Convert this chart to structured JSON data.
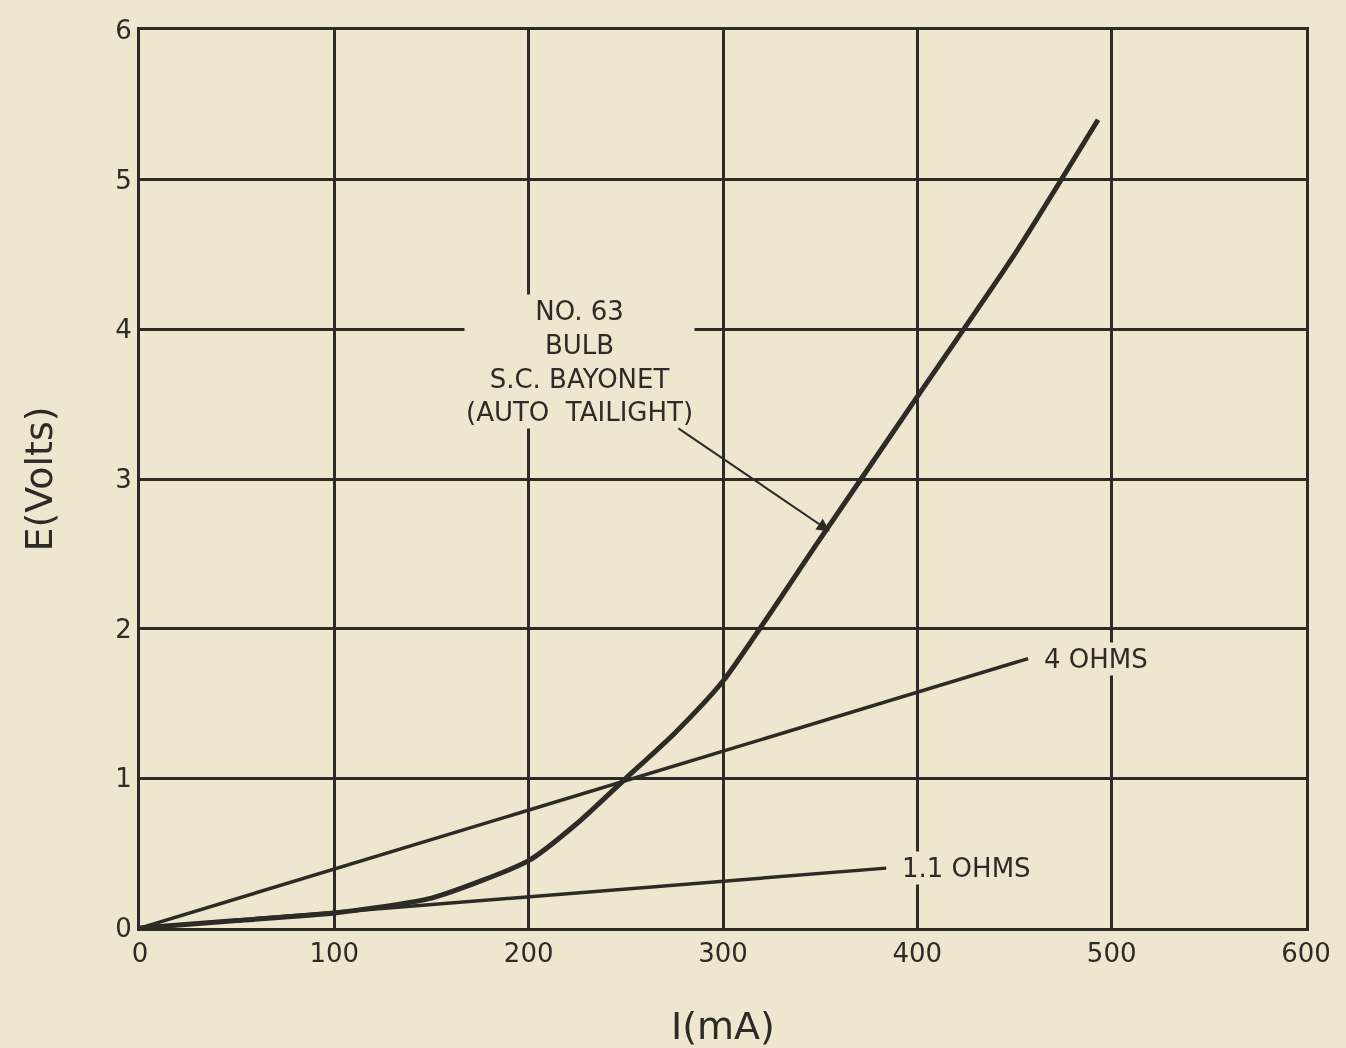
{
  "chart_data": {
    "type": "line",
    "xlabel": "I(mA)",
    "ylabel": "E(Volts)",
    "xlim": [
      0,
      600
    ],
    "ylim": [
      0,
      6
    ],
    "xticks": [
      0,
      100,
      200,
      300,
      400,
      500,
      600
    ],
    "yticks": [
      0,
      1,
      2,
      3,
      4,
      5,
      6
    ],
    "grid": true,
    "legend": false,
    "marker": "none",
    "line_style": "solid",
    "series": [
      {
        "color": "#2e2a26",
        "x": [
          0,
          50,
          100,
          150,
          200,
          225,
          250,
          275,
          300,
          350,
          400,
          450,
          493
        ],
        "values": [
          0,
          0.05,
          0.1,
          0.2,
          0.45,
          0.7,
          1.0,
          1.3,
          1.65,
          2.6,
          3.55,
          4.5,
          5.4
        ]
      },
      {
        "name": "4 OHMS",
        "color": "#2e2a26",
        "x": [
          0,
          457
        ],
        "values": [
          0,
          1.8
        ]
      },
      {
        "name": "1.1 OHMS",
        "color": "#2e2a26",
        "x": [
          0,
          384
        ],
        "values": [
          0,
          0.4
        ]
      }
    ],
    "annotations": [
      {
        "text": "NO. 63\nBULB\nS.C. BAYONET\n(AUTO  TAILIGHT)",
        "x": 355,
        "y": 2.65
      }
    ]
  }
}
